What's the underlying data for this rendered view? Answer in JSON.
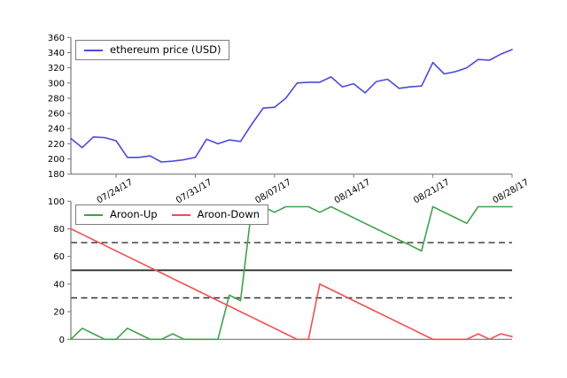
{
  "figure": {
    "background": "#ffffff"
  },
  "chart_data": [
    {
      "type": "line",
      "panel": "top",
      "title": "",
      "x_unit": "daily",
      "x_tick_labels": [
        "07/24/17",
        "07/31/17",
        "08/07/17",
        "08/14/17",
        "08/21/17",
        "08/28/17"
      ],
      "x_tick_day_indices": [
        4,
        11,
        18,
        25,
        32,
        39
      ],
      "ylim": [
        180,
        360
      ],
      "yticks": [
        180,
        200,
        220,
        240,
        260,
        280,
        300,
        320,
        340,
        360
      ],
      "grid": false,
      "legend_position": "upper-left",
      "series": [
        {
          "name": "ethereum price (USD)",
          "color": "#4b4bd8",
          "values": [
            227,
            215,
            229,
            228,
            224,
            202,
            202,
            204,
            196,
            197,
            199,
            202,
            226,
            220,
            225,
            223,
            246,
            267,
            268,
            280,
            300,
            301,
            301,
            308,
            295,
            299,
            287,
            302,
            305,
            293,
            295,
            296,
            327,
            312,
            315,
            320,
            331,
            330,
            338,
            344
          ]
        }
      ]
    },
    {
      "type": "line",
      "panel": "bottom",
      "title": "",
      "x_unit": "daily",
      "x_tick_labels": [],
      "ylim": [
        0,
        100
      ],
      "yticks": [
        0,
        20,
        40,
        60,
        80,
        100
      ],
      "grid": false,
      "legend_position": "upper-left",
      "reference_lines": [
        {
          "value": 70,
          "style": "dashed",
          "color": "#303030"
        },
        {
          "value": 50,
          "style": "solid",
          "color": "#303030"
        },
        {
          "value": 30,
          "style": "dashed",
          "color": "#303030"
        }
      ],
      "series": [
        {
          "name": "Aroon-Up",
          "color": "#3fa24d",
          "values": [
            0,
            8,
            4,
            0,
            0,
            8,
            4,
            0,
            0,
            4,
            0,
            0,
            0,
            0,
            32,
            28,
            96,
            96,
            92,
            96,
            96,
            96,
            92,
            96,
            92,
            88,
            84,
            80,
            76,
            72,
            68,
            64,
            96,
            92,
            88,
            84,
            96,
            96,
            96,
            96
          ]
        },
        {
          "name": "Aroon-Down",
          "color": "#ef5151",
          "values": [
            80,
            76,
            72,
            68,
            64,
            60,
            56,
            52,
            48,
            44,
            40,
            36,
            32,
            28,
            24,
            20,
            16,
            12,
            8,
            4,
            0,
            0,
            40,
            36,
            32,
            28,
            24,
            20,
            16,
            12,
            8,
            4,
            0,
            0,
            0,
            0,
            4,
            0,
            4,
            2
          ]
        }
      ]
    }
  ]
}
